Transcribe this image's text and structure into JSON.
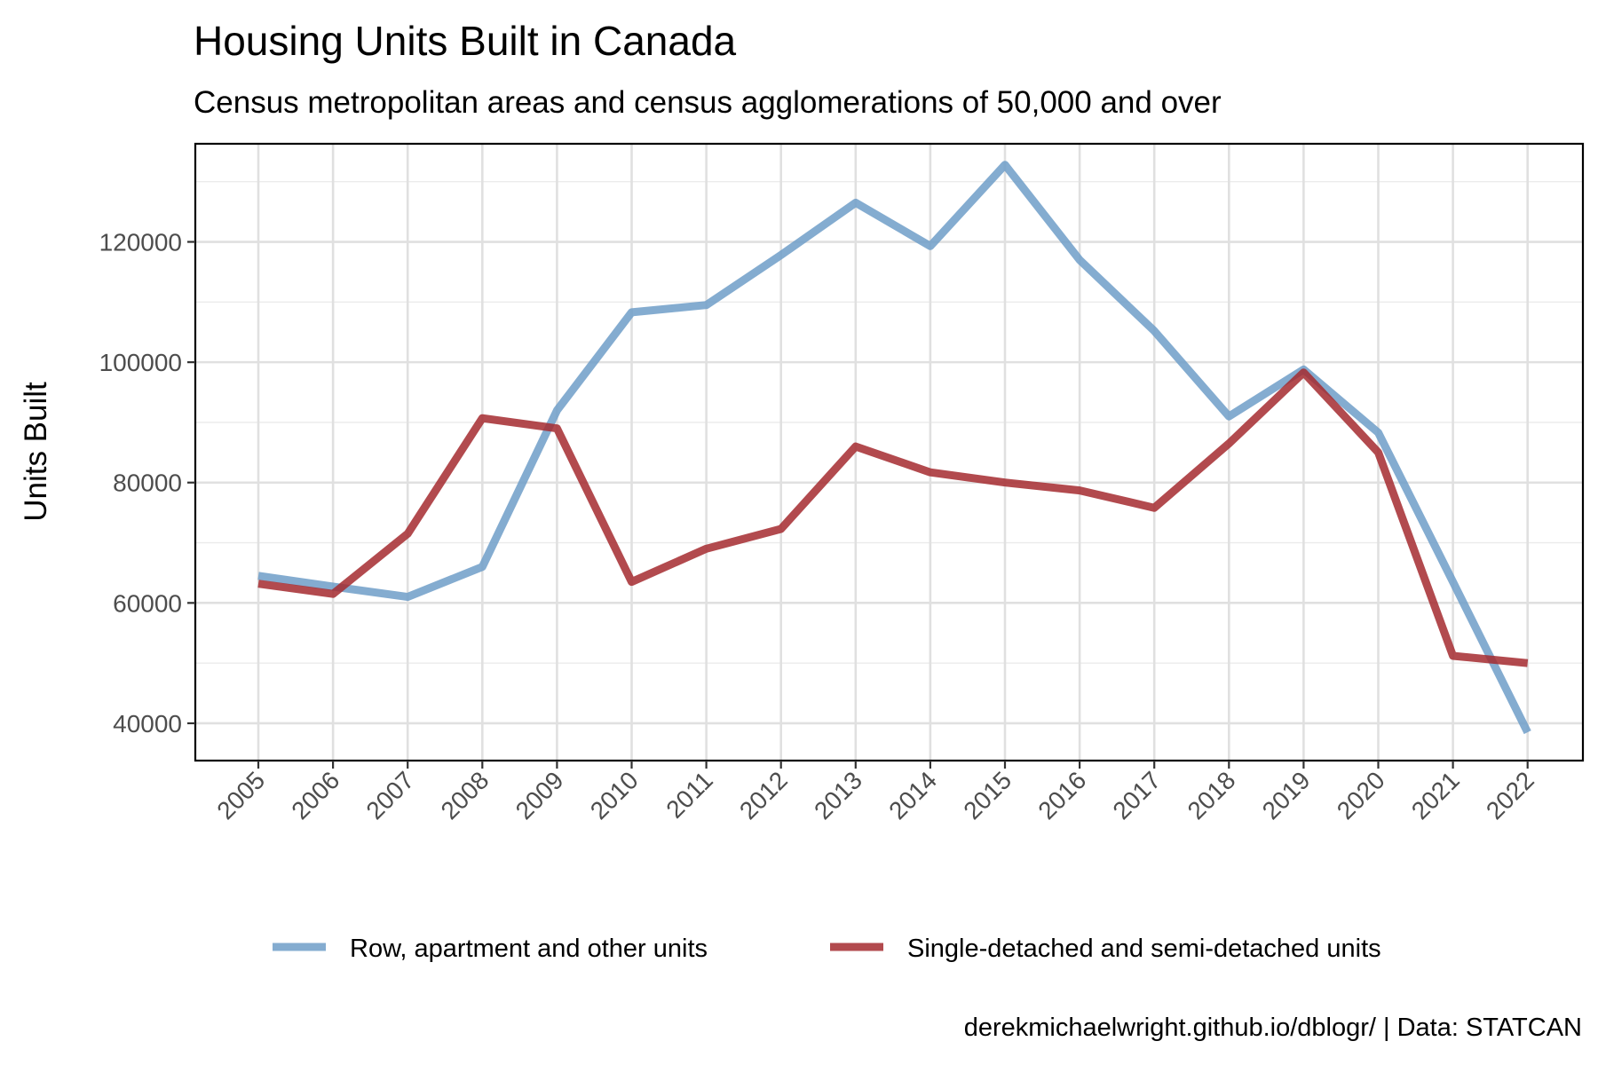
{
  "chart_data": {
    "type": "line",
    "title": "Housing Units Built in Canada",
    "subtitle": "Census metropolitan areas and census agglomerations of 50,000 and over",
    "xlabel": "",
    "ylabel": "Units Built",
    "caption": "derekmichaelwright.github.io/dblogr/ | Data: STATCAN",
    "x": [
      "2005",
      "2006",
      "2007",
      "2008",
      "2009",
      "2010",
      "2011",
      "2012",
      "2013",
      "2014",
      "2015",
      "2016",
      "2017",
      "2018",
      "2019",
      "2020",
      "2021",
      "2022"
    ],
    "y_ticks": [
      40000,
      60000,
      80000,
      100000,
      120000
    ],
    "y_tick_labels": [
      "40000",
      "60000",
      "80000",
      "100000",
      "120000"
    ],
    "ylim": [
      33800,
      136300
    ],
    "grid": true,
    "legend_position": "bottom",
    "series": [
      {
        "name": "Row, apartment and other units",
        "color": "#6f9ec8",
        "values": [
          64500,
          62700,
          61000,
          66000,
          92000,
          108300,
          109500,
          117800,
          126500,
          119300,
          132800,
          117000,
          105200,
          91000,
          98800,
          88300,
          63500,
          38500
        ]
      },
      {
        "name": "Single-detached and semi-detached units",
        "color": "#a52a2f",
        "values": [
          63200,
          61500,
          71500,
          90700,
          89000,
          63500,
          69000,
          72300,
          86000,
          81700,
          80000,
          78700,
          75800,
          86500,
          98300,
          85000,
          51200,
          50000
        ]
      }
    ]
  }
}
